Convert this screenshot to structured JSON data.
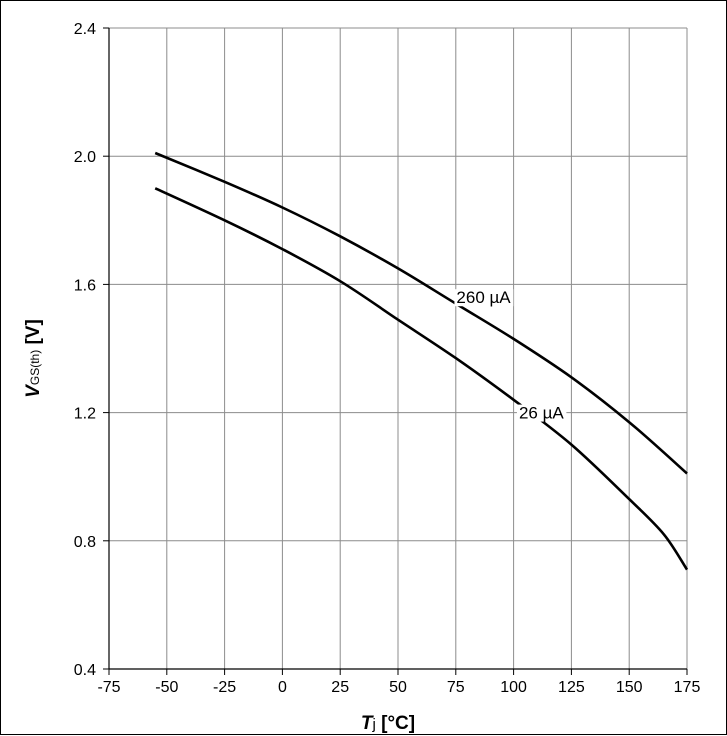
{
  "chart_data": {
    "type": "line",
    "xlabel": {
      "var": "T",
      "sub": "j",
      "unit": " [°C]"
    },
    "ylabel": {
      "var": "V",
      "sub": "GS(th)",
      "unit": " [V]"
    },
    "xlim": [
      -75,
      175
    ],
    "ylim": [
      0.4,
      2.4
    ],
    "xticks": [
      -75,
      -50,
      -25,
      0,
      25,
      50,
      75,
      100,
      125,
      150,
      175
    ],
    "yticks": [
      0.4,
      0.8,
      1.2,
      1.6,
      2.0,
      2.4
    ],
    "xtick_labels": [
      "-75",
      "-50",
      "-25",
      "0",
      "25",
      "50",
      "75",
      "100",
      "125",
      "150",
      "175"
    ],
    "ytick_labels": [
      "0.4",
      "0.8",
      "1.2",
      "1.6",
      "2.0",
      "2.4"
    ],
    "grid": true,
    "series": [
      {
        "name": "260 µA",
        "x": [
          -55,
          -25,
          0,
          25,
          50,
          75,
          100,
          125,
          150,
          175
        ],
        "y": [
          2.01,
          1.92,
          1.84,
          1.75,
          1.65,
          1.54,
          1.43,
          1.31,
          1.17,
          1.01
        ],
        "label_at": [
          87,
          1.56
        ]
      },
      {
        "name": "26 µA",
        "x": [
          -55,
          -25,
          0,
          25,
          50,
          75,
          100,
          125,
          150,
          165,
          175
        ],
        "y": [
          1.9,
          1.8,
          1.71,
          1.61,
          1.49,
          1.37,
          1.24,
          1.1,
          0.93,
          0.82,
          0.71
        ],
        "label_at": [
          112,
          1.2
        ]
      }
    ]
  }
}
